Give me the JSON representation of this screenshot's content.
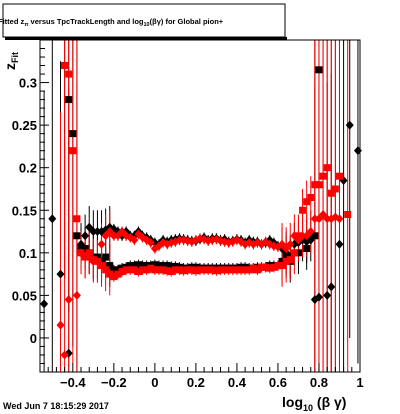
{
  "footer": {
    "timestamp": "Wed Jun  7 18:15:29 2017"
  },
  "colors": {
    "black": "#000000",
    "red": "#ff0000",
    "background": "#ffffff"
  },
  "chart_data": {
    "type": "scatter",
    "title": {
      "prefix": "Fitted ",
      "z": "z",
      "z_sub": "π",
      "mid": " versus TpcTrackLength and log",
      "log_sub": "10",
      "suffix": "(βγ) for Global pion+"
    },
    "ylabel": {
      "main": "z",
      "sub": "Fit"
    },
    "xlabel": {
      "main": "log",
      "sub": "10",
      "suffix": " (β γ)"
    },
    "xlim": [
      -0.56,
      1.0
    ],
    "ylim": [
      -0.04,
      0.35
    ],
    "xticks": [
      -0.4,
      -0.2,
      0,
      0.2,
      0.4,
      0.6,
      0.8,
      1
    ],
    "xtick_labels": [
      "−0.4",
      "−0.2",
      "0",
      "0.2",
      "0.4",
      "0.6",
      "0.8",
      "1"
    ],
    "yticks": [
      0,
      0.05,
      0.1,
      0.15,
      0.2,
      0.25,
      0.3
    ],
    "ytick_labels": [
      "0",
      "0.05",
      "0.1",
      "0.15",
      "0.2",
      "0.25",
      "0.3"
    ],
    "grid": false,
    "series": [
      {
        "marker": "diamond",
        "color": "#000000",
        "role": "upper",
        "points": [
          [
            -0.54,
            0.04
          ],
          [
            -0.5,
            0.14
          ],
          [
            -0.46,
            0.075
          ],
          [
            -0.42,
            -0.018
          ],
          [
            -0.36,
            0.11
          ],
          [
            -0.34,
            0.12
          ],
          [
            -0.32,
            0.13
          ],
          [
            -0.3,
            0.125
          ],
          [
            -0.28,
            0.125
          ],
          [
            -0.26,
            0.125
          ],
          [
            -0.24,
            0.127
          ],
          [
            -0.22,
            0.13
          ],
          [
            -0.2,
            0.128
          ],
          [
            -0.18,
            0.125
          ],
          [
            -0.16,
            0.12
          ],
          [
            -0.14,
            0.125
          ],
          [
            -0.12,
            0.12
          ],
          [
            -0.1,
            0.12
          ],
          [
            -0.08,
            0.125
          ],
          [
            -0.06,
            0.12
          ],
          [
            -0.04,
            0.118
          ],
          [
            -0.02,
            0.115
          ],
          [
            0.0,
            0.112
          ],
          [
            0.02,
            0.11
          ],
          [
            0.04,
            0.115
          ],
          [
            0.06,
            0.113
          ],
          [
            0.08,
            0.115
          ],
          [
            0.1,
            0.116
          ],
          [
            0.12,
            0.117
          ],
          [
            0.14,
            0.116
          ],
          [
            0.16,
            0.115
          ],
          [
            0.18,
            0.114
          ],
          [
            0.2,
            0.114
          ],
          [
            0.22,
            0.116
          ],
          [
            0.24,
            0.118
          ],
          [
            0.26,
            0.115
          ],
          [
            0.28,
            0.117
          ],
          [
            0.3,
            0.117
          ],
          [
            0.32,
            0.115
          ],
          [
            0.34,
            0.116
          ],
          [
            0.36,
            0.113
          ],
          [
            0.38,
            0.114
          ],
          [
            0.4,
            0.116
          ],
          [
            0.42,
            0.115
          ],
          [
            0.44,
            0.112
          ],
          [
            0.46,
            0.115
          ],
          [
            0.48,
            0.113
          ],
          [
            0.5,
            0.113
          ],
          [
            0.52,
            0.11
          ],
          [
            0.54,
            0.112
          ],
          [
            0.56,
            0.115
          ],
          [
            0.58,
            0.112
          ],
          [
            0.6,
            0.108
          ],
          [
            0.62,
            0.105
          ],
          [
            0.64,
            0.1
          ],
          [
            0.66,
            0.095
          ],
          [
            0.68,
            0.11
          ],
          [
            0.7,
            0.112
          ],
          [
            0.72,
            0.115
          ],
          [
            0.74,
            0.113
          ],
          [
            0.76,
            0.115
          ],
          [
            0.78,
            0.045
          ],
          [
            0.8,
            0.048
          ],
          [
            0.84,
            0.05
          ],
          [
            0.86,
            0.06
          ],
          [
            0.9,
            0.11
          ],
          [
            0.92,
            0.185
          ],
          [
            0.95,
            0.25
          ],
          [
            0.99,
            0.22
          ]
        ]
      },
      {
        "marker": "square",
        "color": "#000000",
        "role": "lower",
        "points": [
          [
            -0.44,
            0.32
          ],
          [
            -0.42,
            0.28
          ],
          [
            -0.4,
            0.24
          ],
          [
            -0.38,
            0.12
          ],
          [
            -0.36,
            0.105
          ],
          [
            -0.34,
            0.105
          ],
          [
            -0.32,
            0.1
          ],
          [
            -0.3,
            0.095
          ],
          [
            -0.28,
            0.095
          ],
          [
            -0.26,
            0.09
          ],
          [
            -0.24,
            0.095
          ],
          [
            -0.22,
            0.085
          ],
          [
            -0.2,
            0.08
          ],
          [
            -0.18,
            0.08
          ],
          [
            -0.16,
            0.082
          ],
          [
            -0.14,
            0.083
          ],
          [
            -0.12,
            0.085
          ],
          [
            -0.1,
            0.085
          ],
          [
            -0.08,
            0.086
          ],
          [
            -0.06,
            0.085
          ],
          [
            -0.04,
            0.085
          ],
          [
            -0.02,
            0.085
          ],
          [
            0.0,
            0.086
          ],
          [
            0.02,
            0.085
          ],
          [
            0.04,
            0.085
          ],
          [
            0.06,
            0.085
          ],
          [
            0.08,
            0.084
          ],
          [
            0.1,
            0.084
          ],
          [
            0.12,
            0.083
          ],
          [
            0.14,
            0.082
          ],
          [
            0.16,
            0.082
          ],
          [
            0.18,
            0.083
          ],
          [
            0.2,
            0.083
          ],
          [
            0.22,
            0.082
          ],
          [
            0.24,
            0.082
          ],
          [
            0.26,
            0.082
          ],
          [
            0.28,
            0.082
          ],
          [
            0.3,
            0.082
          ],
          [
            0.32,
            0.082
          ],
          [
            0.34,
            0.082
          ],
          [
            0.36,
            0.082
          ],
          [
            0.38,
            0.082
          ],
          [
            0.4,
            0.082
          ],
          [
            0.42,
            0.083
          ],
          [
            0.44,
            0.083
          ],
          [
            0.46,
            0.082
          ],
          [
            0.48,
            0.082
          ],
          [
            0.5,
            0.083
          ],
          [
            0.52,
            0.083
          ],
          [
            0.54,
            0.083
          ],
          [
            0.56,
            0.085
          ],
          [
            0.58,
            0.085
          ],
          [
            0.6,
            0.085
          ],
          [
            0.62,
            0.09
          ],
          [
            0.64,
            0.095
          ],
          [
            0.66,
            0.09
          ],
          [
            0.7,
            0.1
          ],
          [
            0.74,
            0.105
          ],
          [
            0.78,
            0.12
          ],
          [
            0.8,
            0.315
          ]
        ]
      },
      {
        "marker": "diamond",
        "color": "#ff0000",
        "role": "upper",
        "points": [
          [
            -0.46,
            0.015
          ],
          [
            -0.44,
            -0.02
          ],
          [
            -0.42,
            0.045
          ],
          [
            -0.38,
            0.05
          ],
          [
            -0.36,
            0.1
          ],
          [
            -0.34,
            0.095
          ],
          [
            -0.32,
            0.1
          ],
          [
            -0.3,
            0.09
          ],
          [
            -0.28,
            0.09
          ],
          [
            -0.26,
            0.11
          ],
          [
            -0.24,
            0.12
          ],
          [
            -0.22,
            0.125
          ],
          [
            -0.2,
            0.12
          ],
          [
            -0.18,
            0.12
          ],
          [
            -0.16,
            0.125
          ],
          [
            -0.14,
            0.12
          ],
          [
            -0.12,
            0.118
          ],
          [
            -0.1,
            0.115
          ],
          [
            -0.08,
            0.122
          ],
          [
            -0.06,
            0.118
          ],
          [
            -0.04,
            0.115
          ],
          [
            -0.02,
            0.112
          ],
          [
            0.0,
            0.105
          ],
          [
            0.02,
            0.108
          ],
          [
            0.04,
            0.112
          ],
          [
            0.06,
            0.11
          ],
          [
            0.08,
            0.112
          ],
          [
            0.1,
            0.113
          ],
          [
            0.12,
            0.115
          ],
          [
            0.14,
            0.115
          ],
          [
            0.16,
            0.114
          ],
          [
            0.18,
            0.113
          ],
          [
            0.2,
            0.115
          ],
          [
            0.22,
            0.117
          ],
          [
            0.24,
            0.116
          ],
          [
            0.26,
            0.114
          ],
          [
            0.28,
            0.115
          ],
          [
            0.3,
            0.116
          ],
          [
            0.32,
            0.114
          ],
          [
            0.34,
            0.113
          ],
          [
            0.36,
            0.112
          ],
          [
            0.38,
            0.113
          ],
          [
            0.4,
            0.115
          ],
          [
            0.42,
            0.113
          ],
          [
            0.44,
            0.11
          ],
          [
            0.46,
            0.112
          ],
          [
            0.48,
            0.11
          ],
          [
            0.5,
            0.112
          ],
          [
            0.52,
            0.11
          ],
          [
            0.54,
            0.113
          ],
          [
            0.56,
            0.11
          ],
          [
            0.58,
            0.108
          ],
          [
            0.6,
            0.107
          ],
          [
            0.62,
            0.11
          ],
          [
            0.64,
            0.105
          ],
          [
            0.66,
            0.11
          ],
          [
            0.68,
            0.12
          ],
          [
            0.7,
            0.115
          ],
          [
            0.72,
            0.12
          ],
          [
            0.74,
            0.12
          ],
          [
            0.76,
            0.125
          ],
          [
            0.78,
            0.14
          ],
          [
            0.8,
            0.14
          ],
          [
            0.82,
            0.145
          ],
          [
            0.84,
            0.14
          ],
          [
            0.86,
            0.14
          ],
          [
            0.88,
            0.142
          ],
          [
            0.9,
            0.14
          ]
        ]
      },
      {
        "marker": "square",
        "color": "#ff0000",
        "role": "lower",
        "points": [
          [
            -0.44,
            0.32
          ],
          [
            -0.42,
            0.31
          ],
          [
            -0.4,
            0.22
          ],
          [
            -0.38,
            0.14
          ],
          [
            -0.36,
            0.1
          ],
          [
            -0.34,
            0.095
          ],
          [
            -0.32,
            0.1
          ],
          [
            -0.3,
            0.092
          ],
          [
            -0.28,
            0.09
          ],
          [
            -0.26,
            0.085
          ],
          [
            -0.24,
            0.08
          ],
          [
            -0.22,
            0.075
          ],
          [
            -0.2,
            0.072
          ],
          [
            -0.18,
            0.075
          ],
          [
            -0.16,
            0.078
          ],
          [
            -0.14,
            0.08
          ],
          [
            -0.12,
            0.08
          ],
          [
            -0.1,
            0.08
          ],
          [
            -0.08,
            0.078
          ],
          [
            -0.06,
            0.08
          ],
          [
            -0.04,
            0.08
          ],
          [
            -0.02,
            0.082
          ],
          [
            0.0,
            0.08
          ],
          [
            0.02,
            0.08
          ],
          [
            0.04,
            0.08
          ],
          [
            0.06,
            0.079
          ],
          [
            0.08,
            0.078
          ],
          [
            0.1,
            0.08
          ],
          [
            0.12,
            0.08
          ],
          [
            0.14,
            0.079
          ],
          [
            0.16,
            0.08
          ],
          [
            0.18,
            0.08
          ],
          [
            0.2,
            0.079
          ],
          [
            0.22,
            0.08
          ],
          [
            0.24,
            0.08
          ],
          [
            0.26,
            0.08
          ],
          [
            0.28,
            0.08
          ],
          [
            0.3,
            0.079
          ],
          [
            0.32,
            0.08
          ],
          [
            0.34,
            0.08
          ],
          [
            0.36,
            0.08
          ],
          [
            0.38,
            0.08
          ],
          [
            0.4,
            0.08
          ],
          [
            0.42,
            0.08
          ],
          [
            0.44,
            0.08
          ],
          [
            0.46,
            0.08
          ],
          [
            0.48,
            0.082
          ],
          [
            0.5,
            0.08
          ],
          [
            0.52,
            0.083
          ],
          [
            0.54,
            0.083
          ],
          [
            0.56,
            0.082
          ],
          [
            0.58,
            0.083
          ],
          [
            0.6,
            0.085
          ],
          [
            0.62,
            0.085
          ],
          [
            0.64,
            0.09
          ],
          [
            0.66,
            0.092
          ],
          [
            0.68,
            0.1
          ],
          [
            0.7,
            0.12
          ],
          [
            0.72,
            0.15
          ],
          [
            0.74,
            0.16
          ],
          [
            0.76,
            0.165
          ],
          [
            0.78,
            0.18
          ],
          [
            0.8,
            0.18
          ],
          [
            0.82,
            0.19
          ],
          [
            0.84,
            0.2
          ],
          [
            0.86,
            0.17
          ],
          [
            0.88,
            0.175
          ],
          [
            0.9,
            0.19
          ],
          [
            0.94,
            0.145
          ]
        ]
      }
    ]
  }
}
